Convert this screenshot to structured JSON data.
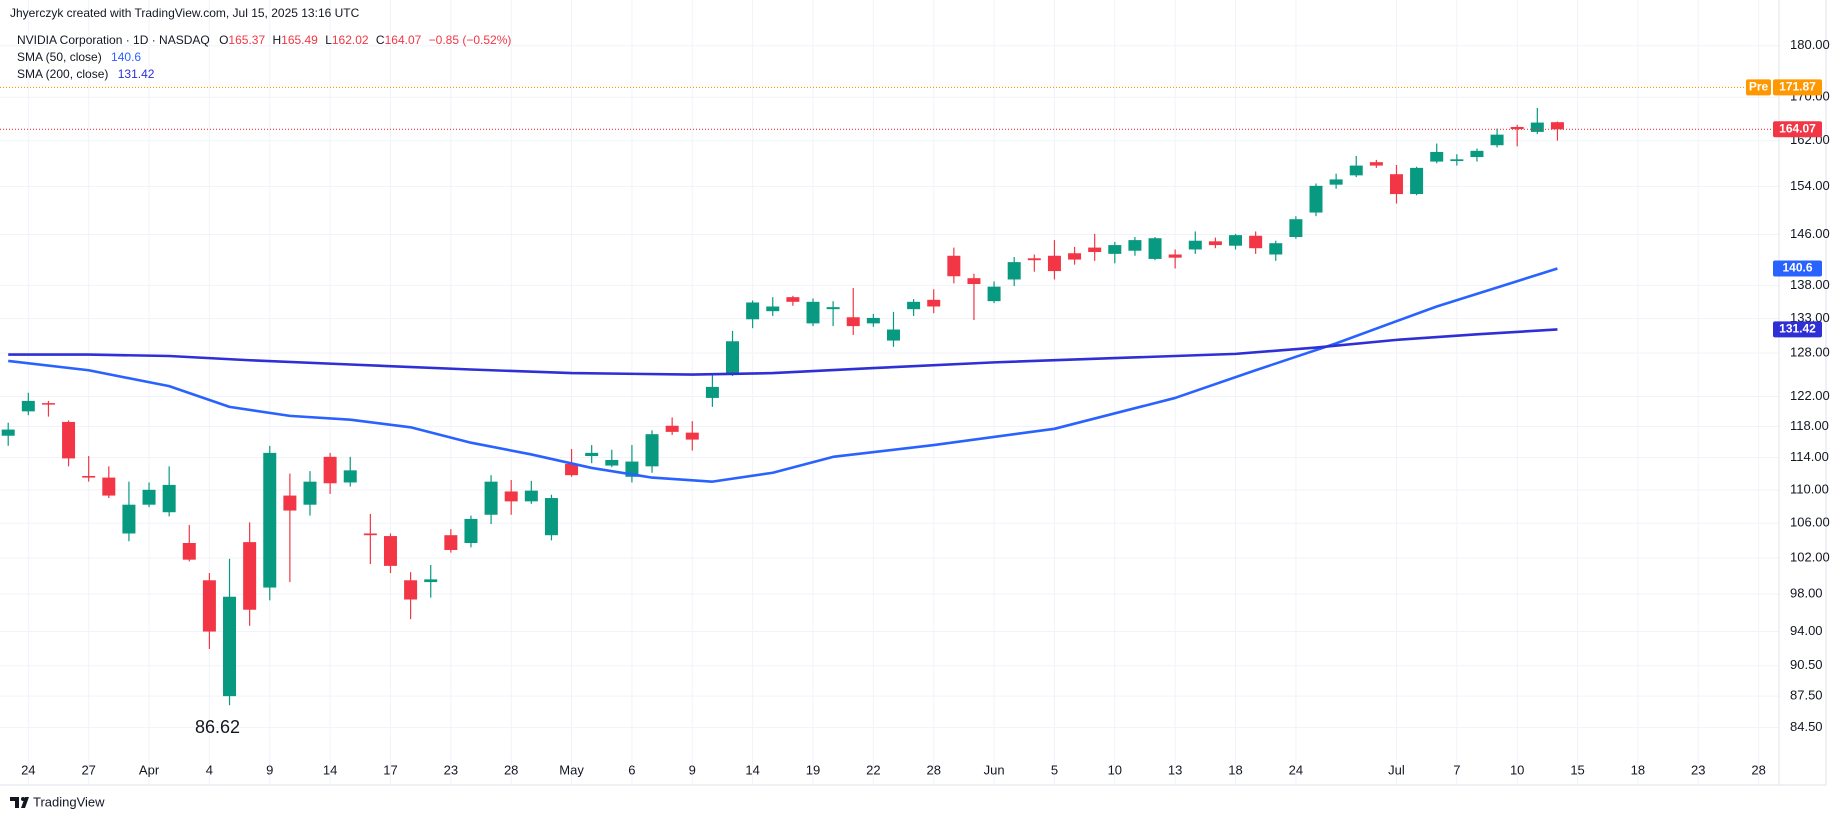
{
  "attribution": "Jhyerczyk created with TradingView.com, Jul 15, 2025 13:16 UTC",
  "brand": "TradingView",
  "chart_data": {
    "type": "candlestick",
    "title": "NVIDIA Corporation · 1D · NASDAQ",
    "legend_labels": [
      "O",
      "H",
      "L",
      "C"
    ],
    "change": "−0.85 (−0.52%)",
    "categories": [
      null,
      "24",
      null,
      null,
      "27",
      null,
      null,
      "Apr",
      null,
      null,
      "4",
      null,
      null,
      "9",
      null,
      null,
      "14",
      null,
      null,
      "17",
      null,
      null,
      "23",
      null,
      null,
      "28",
      null,
      null,
      "May",
      null,
      null,
      "6",
      null,
      null,
      "9",
      null,
      null,
      "14",
      null,
      null,
      "19",
      null,
      null,
      "22",
      null,
      null,
      "28",
      null,
      null,
      "Jun",
      null,
      null,
      "5",
      null,
      null,
      "10",
      null,
      null,
      "13",
      null,
      null,
      "18",
      null,
      null,
      "24",
      null,
      null,
      null,
      null,
      "Jul",
      null,
      null,
      "7",
      null,
      null,
      "10",
      null,
      null,
      "15",
      null,
      null,
      "18",
      null,
      null,
      "23",
      null,
      null,
      "28",
      null
    ],
    "open": [
      116.8,
      120.0,
      121.1,
      118.6,
      111.7,
      111.5,
      104.8,
      108.2,
      107.3,
      103.7,
      99.5,
      87.5,
      103.8,
      98.7,
      109.3,
      108.2,
      114.1,
      110.9,
      104.8,
      104.5,
      99.5,
      99.3,
      104.6,
      103.7,
      107.0,
      109.8,
      108.6,
      104.6,
      113.2,
      114.2,
      113.0,
      111.6,
      112.9,
      118.1,
      117.2,
      121.8,
      125.0,
      132.9,
      134.1,
      136.2,
      132.3,
      134.4,
      133.2,
      132.3,
      129.8,
      134.4,
      135.8,
      142.6,
      139.1,
      135.6,
      138.9,
      142.2,
      142.6,
      143.0,
      143.9,
      142.9,
      143.4,
      142.1,
      142.8,
      143.6,
      144.9,
      144.2,
      145.8,
      142.8,
      145.6,
      149.6,
      154.3,
      155.9,
      158.2,
      156.1,
      152.7,
      158.3,
      158.4,
      159.1,
      161.2,
      164.5,
      163.6,
      165.37,
      null,
      null,
      null,
      null,
      null,
      null,
      null,
      null,
      null,
      null,
      null
    ],
    "high": [
      118.5,
      122.5,
      121.4,
      118.8,
      114.2,
      112.9,
      111.0,
      110.9,
      112.9,
      105.8,
      100.3,
      101.9,
      106.1,
      115.5,
      112.0,
      112.3,
      114.6,
      114.1,
      107.1,
      104.8,
      100.4,
      101.2,
      105.3,
      106.9,
      111.8,
      111.2,
      111.1,
      109.4,
      115.1,
      115.6,
      115.0,
      115.6,
      117.5,
      119.2,
      118.7,
      125.0,
      131.2,
      135.7,
      136.2,
      136.4,
      136.0,
      135.6,
      137.6,
      133.7,
      134.0,
      135.9,
      137.4,
      143.9,
      139.8,
      138.6,
      142.4,
      142.8,
      145.1,
      144.0,
      146.1,
      144.8,
      145.6,
      145.6,
      143.6,
      146.5,
      145.5,
      146.1,
      146.5,
      145.0,
      149.0,
      154.5,
      156.2,
      159.3,
      158.6,
      157.7,
      157.4,
      161.5,
      159.6,
      160.6,
      164.2,
      164.9,
      168.0,
      165.49,
      null,
      null,
      null,
      null,
      null,
      null,
      null,
      null,
      null,
      null,
      null
    ],
    "low": [
      115.5,
      119.5,
      119.3,
      112.9,
      111.0,
      109.0,
      103.9,
      107.9,
      106.8,
      101.6,
      92.2,
      86.62,
      94.6,
      97.3,
      99.3,
      106.9,
      109.5,
      110.4,
      101.3,
      100.3,
      95.3,
      97.6,
      102.6,
      103.2,
      105.9,
      107.0,
      108.3,
      104.0,
      111.6,
      113.3,
      112.8,
      110.9,
      112.1,
      116.9,
      114.9,
      120.6,
      124.8,
      131.6,
      133.4,
      134.9,
      131.9,
      131.9,
      130.6,
      131.8,
      128.9,
      133.4,
      133.8,
      138.3,
      132.8,
      135.3,
      137.9,
      140.1,
      138.9,
      141.2,
      141.8,
      141.4,
      142.6,
      141.9,
      140.6,
      142.9,
      143.8,
      143.6,
      142.9,
      141.8,
      145.3,
      149.0,
      153.6,
      155.6,
      157.2,
      151.1,
      152.5,
      158.0,
      157.6,
      158.3,
      160.8,
      161.0,
      163.2,
      162.02,
      null,
      null,
      null,
      null,
      null,
      null,
      null,
      null,
      null,
      null,
      null
    ],
    "close": [
      117.6,
      121.4,
      120.9,
      113.9,
      111.5,
      109.3,
      108.2,
      110.0,
      110.6,
      101.8,
      94.0,
      97.7,
      96.3,
      114.6,
      107.5,
      111.0,
      110.8,
      112.4,
      104.6,
      101.1,
      97.4,
      99.6,
      102.9,
      106.5,
      111.0,
      108.6,
      109.9,
      109.0,
      111.8,
      114.6,
      113.7,
      113.5,
      117.0,
      117.3,
      116.3,
      123.3,
      129.7,
      135.4,
      134.8,
      135.5,
      135.5,
      134.7,
      131.9,
      133.1,
      131.4,
      135.5,
      134.8,
      139.4,
      138.2,
      137.8,
      141.6,
      141.9,
      140.2,
      142.0,
      143.2,
      144.3,
      145.1,
      145.4,
      142.3,
      145.0,
      144.3,
      145.9,
      143.8,
      144.6,
      148.5,
      154.1,
      155.2,
      157.6,
      157.6,
      152.7,
      157.2,
      160.0,
      158.7,
      160.2,
      163.1,
      164.1,
      165.3,
      164.07,
      null,
      null,
      null,
      null,
      null,
      null,
      null,
      null,
      null,
      null,
      null
    ],
    "up_color": "#089981",
    "down_color": "#f23645",
    "series": [
      {
        "name": "SMA (50, close)",
        "color": "#2962ff",
        "x": [
          0,
          4,
          8,
          11,
          14,
          17,
          20,
          23,
          26,
          29,
          32,
          35,
          38,
          41,
          46,
          52,
          58,
          62,
          66,
          71,
          77
        ],
        "values": [
          126.9,
          125.6,
          123.4,
          120.6,
          119.4,
          118.9,
          117.9,
          115.9,
          114.4,
          112.7,
          111.5,
          111.0,
          112.1,
          114.1,
          115.6,
          117.7,
          121.8,
          125.6,
          129.4,
          134.8,
          140.6
        ]
      },
      {
        "name": "SMA (200, close)",
        "color": "#2f2fd6",
        "x": [
          0,
          4,
          8,
          12,
          17,
          23,
          28,
          34,
          38,
          43,
          49,
          55,
          61,
          65,
          69,
          73,
          77
        ],
        "values": [
          127.8,
          127.8,
          127.6,
          127.0,
          126.4,
          125.7,
          125.2,
          125.0,
          125.2,
          125.9,
          126.7,
          127.3,
          127.9,
          128.8,
          129.9,
          130.7,
          131.42
        ]
      }
    ],
    "premarket": {
      "label": "Pre",
      "value": 171.87,
      "color": "#ff9800"
    },
    "log_scale": true,
    "grid": true,
    "ylim": [
      81.7,
      184.6
    ],
    "yticks": [
      {
        "value": 180,
        "label": "180.00"
      },
      {
        "value": 170,
        "label": "170.00"
      },
      {
        "value": 162,
        "label": "162.00"
      },
      {
        "value": 154,
        "label": "154.00"
      },
      {
        "value": 146,
        "label": "146.00"
      },
      {
        "value": 138,
        "label": "138.00"
      },
      {
        "value": 133,
        "label": "133.00"
      },
      {
        "value": 128,
        "label": "128.00"
      },
      {
        "value": 122,
        "label": "122.00"
      },
      {
        "value": 118,
        "label": "118.00"
      },
      {
        "value": 114,
        "label": "114.00"
      },
      {
        "value": 110,
        "label": "110.00"
      },
      {
        "value": 106,
        "label": "106.00"
      },
      {
        "value": 102,
        "label": "102.00"
      },
      {
        "value": 98,
        "label": "98.00"
      },
      {
        "value": 94,
        "label": "94.00"
      },
      {
        "value": 90.5,
        "label": "90.50"
      },
      {
        "value": 87.5,
        "label": "87.50"
      },
      {
        "value": 84.5,
        "label": "84.50"
      }
    ]
  }
}
